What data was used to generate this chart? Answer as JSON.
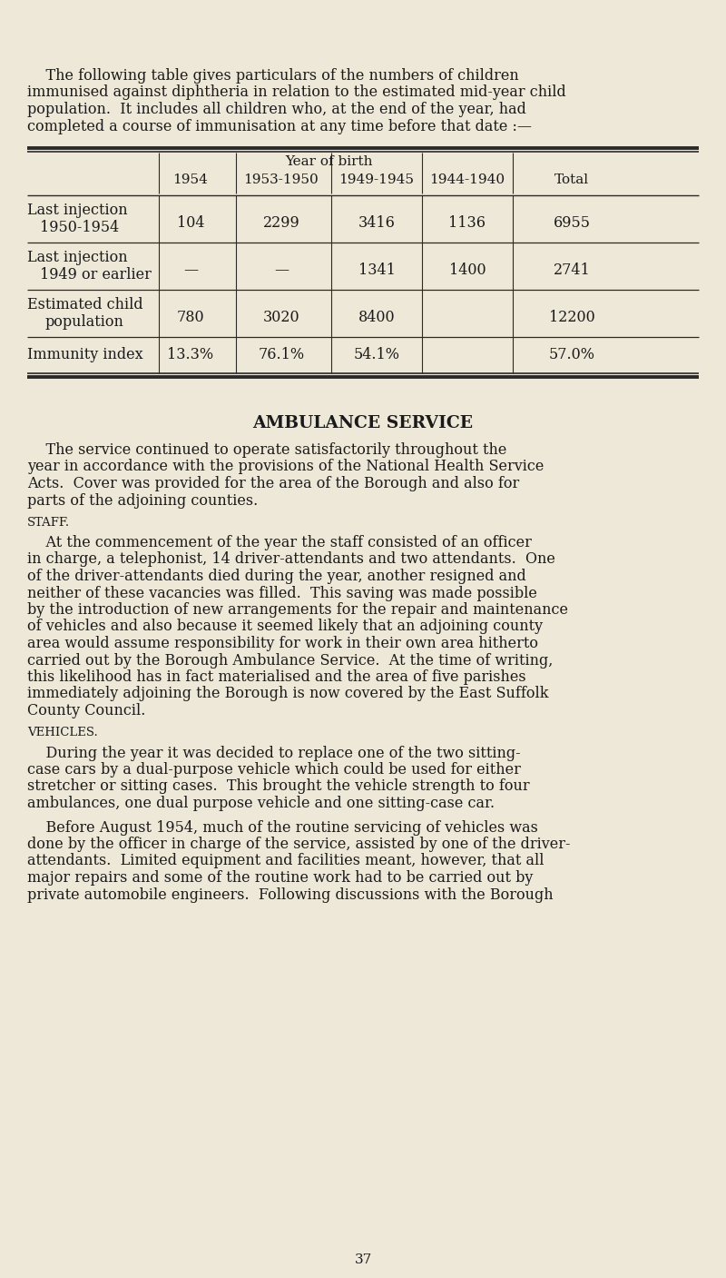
{
  "bg_color": "#eee8d8",
  "text_color": "#1a1a1a",
  "intro_text_lines": [
    "    The following table gives particulars of the numbers of children",
    "immunised against diphtheria in relation to the estimated mid-year child",
    "population.  It includes all children who, at the end of the year, had",
    "completed a course of immunisation at any time before that date :—"
  ],
  "section_heading": "AMBULANCE SERVICE",
  "para1_lines": [
    "    The service continued to operate satisfactorily throughout the",
    "year in accordance with the provisions of the National Health Service",
    "Acts.  Cover was provided for the area of the Borough and also for",
    "parts of the adjoining counties."
  ],
  "subhead1": "STAFF.",
  "para2_lines": [
    "    At the commencement of the year the staff consisted of an officer",
    "in charge, a telephonist, 14 driver-attendants and two attendants.  One",
    "of the driver-attendants died during the year, another resigned and",
    "neither of these vacancies was filled.  This saving was made possible",
    "by the introduction of new arrangements for the repair and maintenance",
    "of vehicles and also because it seemed likely that an adjoining county",
    "area would assume responsibility for work in their own area hitherto",
    "carried out by the Borough Ambulance Service.  At the time of writing,",
    "this likelihood has in fact materialised and the area of five parishes",
    "immediately adjoining the Borough is now covered by the East Suffolk",
    "County Council."
  ],
  "subhead2": "VEHICLES.",
  "para3_lines": [
    "    During the year it was decided to replace one of the two sitting-",
    "case cars by a dual-purpose vehicle which could be used for either",
    "stretcher or sitting cases.  This brought the vehicle strength to four",
    "ambulances, one dual purpose vehicle and one sitting-case car."
  ],
  "para4_lines": [
    "    Before August 1954, much of the routine servicing of vehicles was",
    "done by the officer in charge of the service, assisted by one of the driver-",
    "attendants.  Limited equipment and facilities meant, however, that all",
    "major repairs and some of the routine work had to be carried out by",
    "private automobile engineers.  Following discussions with the Borough"
  ],
  "page_number": "37"
}
